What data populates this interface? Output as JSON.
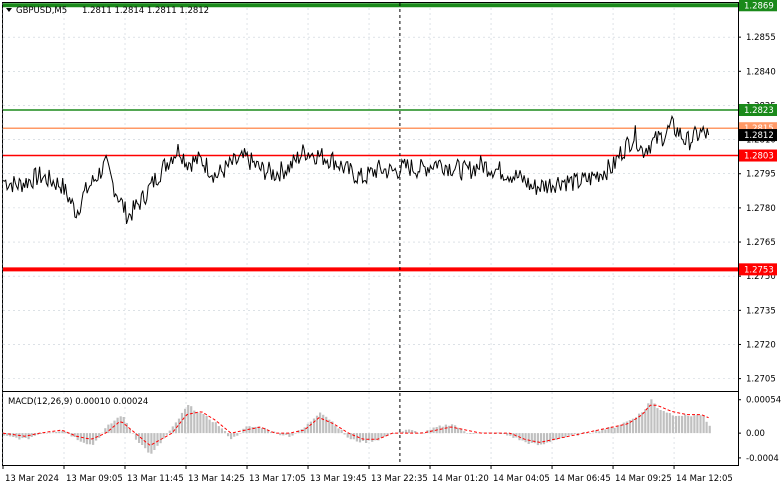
{
  "header": {
    "symbol": "GBPUSD,M5",
    "ohlc": "1.2811 1.2814 1.2811 1.2812"
  },
  "macd_header": {
    "title": "MACD(12,26,9) 0.00010 0.00024"
  },
  "colors": {
    "price_line": "#000000",
    "level_green": "#1a8a1a",
    "level_red": "#ff0000",
    "level_orange": "#ff9966",
    "current_price_bg": "#000000",
    "macd_hist": "#c0c0c0",
    "macd_signal": "#ff0000",
    "grid": "#c8d0d8",
    "separator": "#000000"
  },
  "chart_data": [
    {
      "type": "line",
      "title": "GBPUSD,M5",
      "x": [
        "13 Mar 2024",
        "13 Mar 09:05",
        "13 Mar 11:45",
        "13 Mar 14:25",
        "13 Mar 17:05",
        "13 Mar 19:45",
        "13 Mar 22:35",
        "14 Mar 01:20",
        "14 Mar 04:05",
        "14 Mar 06:45",
        "14 Mar 09:25",
        "14 Mar 12:05"
      ],
      "y_ticks": [
        "1.2869",
        "1.2855",
        "1.2840",
        "1.2825",
        "1.2810",
        "1.2795",
        "1.2780",
        "1.2765",
        "1.2750",
        "1.2735",
        "1.2720",
        "1.2705"
      ],
      "ylim": [
        1.27,
        1.287
      ],
      "price_keypoints": [
        [
          0,
          1.2792
        ],
        [
          0.02,
          1.279
        ],
        [
          0.05,
          1.2794
        ],
        [
          0.08,
          1.279
        ],
        [
          0.1,
          1.2778
        ],
        [
          0.11,
          1.2786
        ],
        [
          0.13,
          1.2795
        ],
        [
          0.14,
          1.2799
        ],
        [
          0.15,
          1.279
        ],
        [
          0.17,
          1.2776
        ],
        [
          0.19,
          1.2784
        ],
        [
          0.21,
          1.2794
        ],
        [
          0.23,
          1.2803
        ],
        [
          0.24,
          1.2806
        ],
        [
          0.25,
          1.28
        ],
        [
          0.27,
          1.2801
        ],
        [
          0.29,
          1.2794
        ],
        [
          0.31,
          1.2799
        ],
        [
          0.33,
          1.2802
        ],
        [
          0.35,
          1.2797
        ],
        [
          0.37,
          1.2795
        ],
        [
          0.39,
          1.2798
        ],
        [
          0.41,
          1.2805
        ],
        [
          0.43,
          1.2803
        ],
        [
          0.45,
          1.2801
        ],
        [
          0.47,
          1.2796
        ],
        [
          0.49,
          1.2793
        ],
        [
          0.51,
          1.2797
        ],
        [
          0.53,
          1.2796
        ],
        [
          0.55,
          1.2798
        ],
        [
          0.57,
          1.2797
        ],
        [
          0.59,
          1.28
        ],
        [
          0.61,
          1.2798
        ],
        [
          0.63,
          1.2796
        ],
        [
          0.65,
          1.2799
        ],
        [
          0.67,
          1.2797
        ],
        [
          0.69,
          1.2795
        ],
        [
          0.71,
          1.2792
        ],
        [
          0.72,
          1.2789
        ],
        [
          0.74,
          1.279
        ],
        [
          0.76,
          1.2792
        ],
        [
          0.78,
          1.2791
        ],
        [
          0.8,
          1.2793
        ],
        [
          0.81,
          1.2795
        ],
        [
          0.83,
          1.2798
        ],
        [
          0.84,
          1.2804
        ],
        [
          0.86,
          1.2812
        ],
        [
          0.87,
          1.2805
        ],
        [
          0.88,
          1.2808
        ],
        [
          0.9,
          1.2812
        ],
        [
          0.91,
          1.2816
        ],
        [
          0.92,
          1.2813
        ],
        [
          0.93,
          1.2809
        ],
        [
          0.94,
          1.2811
        ],
        [
          0.95,
          1.2813
        ],
        [
          0.96,
          1.2812
        ]
      ],
      "levels": [
        {
          "value": 1.2869,
          "label": "1.2869",
          "color": "green",
          "thick": true
        },
        {
          "value": 1.2823,
          "label": "1.2823",
          "color": "green",
          "thick": false
        },
        {
          "value": 1.2815,
          "label": "1.2815",
          "color": "orange",
          "thick": false
        },
        {
          "value": 1.2812,
          "label": "1.2812",
          "color": "current",
          "thick": false
        },
        {
          "value": 1.2803,
          "label": "1.2803",
          "color": "red",
          "thick": false
        },
        {
          "value": 1.2753,
          "label": "1.2753",
          "color": "red",
          "thick": true
        }
      ],
      "x_tick_positions": [
        0,
        0.083,
        0.166,
        0.249,
        0.332,
        0.415,
        0.498,
        0.581,
        0.664,
        0.747,
        0.83,
        0.913
      ],
      "vline_at": 0.54
    },
    {
      "type": "bar",
      "title": "MACD(12,26,9) 0.00010 0.00024",
      "y_ticks": [
        "0.00054",
        "0.00",
        "-0.0004"
      ],
      "ylim": [
        -0.00045,
        0.0006
      ],
      "hist_keypoints": [
        [
          0,
          -5e-05
        ],
        [
          0.03,
          -0.0001
        ],
        [
          0.05,
          0.0
        ],
        [
          0.08,
          5e-05
        ],
        [
          0.1,
          -0.0001
        ],
        [
          0.12,
          -0.0002
        ],
        [
          0.14,
          0.0001
        ],
        [
          0.16,
          0.0003
        ],
        [
          0.18,
          -0.0001
        ],
        [
          0.2,
          -0.00035
        ],
        [
          0.23,
          0.0001
        ],
        [
          0.25,
          0.00045
        ],
        [
          0.27,
          0.0003
        ],
        [
          0.29,
          0.00015
        ],
        [
          0.31,
          -0.0001
        ],
        [
          0.33,
          0.0001
        ],
        [
          0.35,
          0.0001
        ],
        [
          0.37,
          0.0
        ],
        [
          0.39,
          -5e-05
        ],
        [
          0.41,
          0.0001
        ],
        [
          0.43,
          0.00035
        ],
        [
          0.45,
          0.00015
        ],
        [
          0.47,
          -0.0001
        ],
        [
          0.49,
          -0.00015
        ],
        [
          0.51,
          -0.0001
        ],
        [
          0.53,
          0.0
        ],
        [
          0.55,
          5e-05
        ],
        [
          0.57,
          0.0
        ],
        [
          0.59,
          0.0001
        ],
        [
          0.61,
          0.00015
        ],
        [
          0.63,
          0.0
        ],
        [
          0.65,
          0.0
        ],
        [
          0.67,
          0.0
        ],
        [
          0.69,
          -5e-05
        ],
        [
          0.71,
          -0.00015
        ],
        [
          0.73,
          -0.0002
        ],
        [
          0.75,
          -0.0001
        ],
        [
          0.77,
          -5e-05
        ],
        [
          0.79,
          0.0
        ],
        [
          0.81,
          5e-05
        ],
        [
          0.83,
          0.0001
        ],
        [
          0.85,
          0.0002
        ],
        [
          0.87,
          0.00035
        ],
        [
          0.88,
          0.00055
        ],
        [
          0.89,
          0.0004
        ],
        [
          0.91,
          0.0003
        ],
        [
          0.93,
          0.00028
        ],
        [
          0.95,
          0.0003
        ],
        [
          0.96,
          0.0001
        ]
      ],
      "signal_keypoints": [
        [
          0,
          0.0
        ],
        [
          0.03,
          -5e-05
        ],
        [
          0.05,
          0.0
        ],
        [
          0.08,
          5e-05
        ],
        [
          0.1,
          -5e-05
        ],
        [
          0.12,
          -0.0001
        ],
        [
          0.14,
          0.0
        ],
        [
          0.16,
          0.0002
        ],
        [
          0.18,
          0.0
        ],
        [
          0.2,
          -0.0002
        ],
        [
          0.23,
          0.0
        ],
        [
          0.25,
          0.0003
        ],
        [
          0.27,
          0.00035
        ],
        [
          0.29,
          0.0002
        ],
        [
          0.31,
          0.0
        ],
        [
          0.33,
          5e-05
        ],
        [
          0.35,
          0.0001
        ],
        [
          0.37,
          0.0
        ],
        [
          0.39,
          0.0
        ],
        [
          0.41,
          5e-05
        ],
        [
          0.43,
          0.00025
        ],
        [
          0.45,
          0.00015
        ],
        [
          0.47,
          0.0
        ],
        [
          0.49,
          -0.0001
        ],
        [
          0.51,
          -0.0001
        ],
        [
          0.53,
          0.0
        ],
        [
          0.55,
          0.0
        ],
        [
          0.57,
          0.0
        ],
        [
          0.59,
          5e-05
        ],
        [
          0.61,
          0.0001
        ],
        [
          0.63,
          5e-05
        ],
        [
          0.65,
          0.0
        ],
        [
          0.67,
          0.0
        ],
        [
          0.69,
          0.0
        ],
        [
          0.71,
          -0.0001
        ],
        [
          0.73,
          -0.00015
        ],
        [
          0.75,
          -0.0001
        ],
        [
          0.77,
          -5e-05
        ],
        [
          0.79,
          0.0
        ],
        [
          0.81,
          5e-05
        ],
        [
          0.83,
          0.0001
        ],
        [
          0.85,
          0.00015
        ],
        [
          0.87,
          0.0003
        ],
        [
          0.88,
          0.00045
        ],
        [
          0.89,
          0.00045
        ],
        [
          0.91,
          0.00035
        ],
        [
          0.93,
          0.0003
        ],
        [
          0.95,
          0.0003
        ],
        [
          0.96,
          0.00025
        ]
      ]
    }
  ]
}
